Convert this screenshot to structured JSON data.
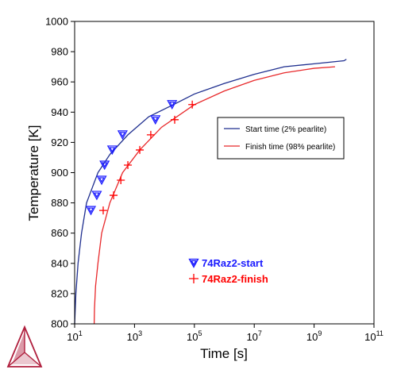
{
  "chart_data": {
    "type": "scatter",
    "title": "",
    "xlabel": "Time [s]",
    "ylabel": "Temperature [K]",
    "xscale": "log",
    "xlim": [
      10,
      100000000000
    ],
    "ylim": [
      800,
      1000
    ],
    "x_ticks": [
      {
        "value": 10,
        "base": "10",
        "exp": "1"
      },
      {
        "value": 1000,
        "base": "10",
        "exp": "3"
      },
      {
        "value": 100000,
        "base": "10",
        "exp": "5"
      },
      {
        "value": 10000000,
        "base": "10",
        "exp": "7"
      },
      {
        "value": 1000000000,
        "base": "10",
        "exp": "9"
      },
      {
        "value": 100000000000,
        "base": "10",
        "exp": "11"
      }
    ],
    "y_ticks": [
      {
        "value": 800,
        "label": "800"
      },
      {
        "value": 820,
        "label": "820"
      },
      {
        "value": 840,
        "label": "840"
      },
      {
        "value": 860,
        "label": "860"
      },
      {
        "value": 880,
        "label": "880"
      },
      {
        "value": 900,
        "label": "900"
      },
      {
        "value": 920,
        "label": "920"
      },
      {
        "value": 940,
        "label": "940"
      },
      {
        "value": 960,
        "label": "960"
      },
      {
        "value": 980,
        "label": "980"
      },
      {
        "value": 1000,
        "label": "1000"
      }
    ],
    "grid": false,
    "legend_position": "right",
    "lines": [
      {
        "name": "Start time (2% pearlite)",
        "color": "#1f2f8f",
        "points": [
          [
            10,
            800
          ],
          [
            11,
            820
          ],
          [
            13,
            840
          ],
          [
            17,
            860
          ],
          [
            25,
            880
          ],
          [
            60,
            900
          ],
          [
            150,
            912
          ],
          [
            600,
            925
          ],
          [
            3000,
            937
          ],
          [
            20000,
            945
          ],
          [
            100000,
            952
          ],
          [
            1000000,
            959
          ],
          [
            10000000,
            965
          ],
          [
            100000000,
            970
          ],
          [
            1000000000,
            972
          ],
          [
            10000000000,
            974
          ],
          [
            12000000000,
            975
          ]
        ]
      },
      {
        "name": "Finish time (98% pearlite)",
        "color": "#e8282a",
        "points": [
          [
            45,
            800
          ],
          [
            46,
            810
          ],
          [
            50,
            825
          ],
          [
            60,
            840
          ],
          [
            80,
            860
          ],
          [
            150,
            880
          ],
          [
            400,
            900
          ],
          [
            1500,
            915
          ],
          [
            8000,
            930
          ],
          [
            100000,
            945
          ],
          [
            1000000,
            954
          ],
          [
            10000000,
            961
          ],
          [
            100000000,
            966
          ],
          [
            1000000000,
            969
          ],
          [
            5000000000,
            970
          ]
        ]
      }
    ],
    "scatter": [
      {
        "name": "74Raz2-start",
        "color": "#1a1aff",
        "marker": "triangle-down",
        "points": [
          [
            35,
            875
          ],
          [
            55,
            885
          ],
          [
            80,
            895
          ],
          [
            100,
            905
          ],
          [
            180,
            915
          ],
          [
            400,
            925
          ],
          [
            5000,
            935
          ],
          [
            18000,
            945
          ]
        ]
      },
      {
        "name": "74Raz2-finish",
        "color": "#ff0000",
        "marker": "plus",
        "points": [
          [
            90,
            875
          ],
          [
            200,
            885
          ],
          [
            350,
            895
          ],
          [
            600,
            905
          ],
          [
            1500,
            915
          ],
          [
            3500,
            925
          ],
          [
            22000,
            935
          ],
          [
            85000,
            945
          ]
        ]
      }
    ]
  },
  "logo": {
    "name": "triangle-logo",
    "color": "#b0203e"
  }
}
